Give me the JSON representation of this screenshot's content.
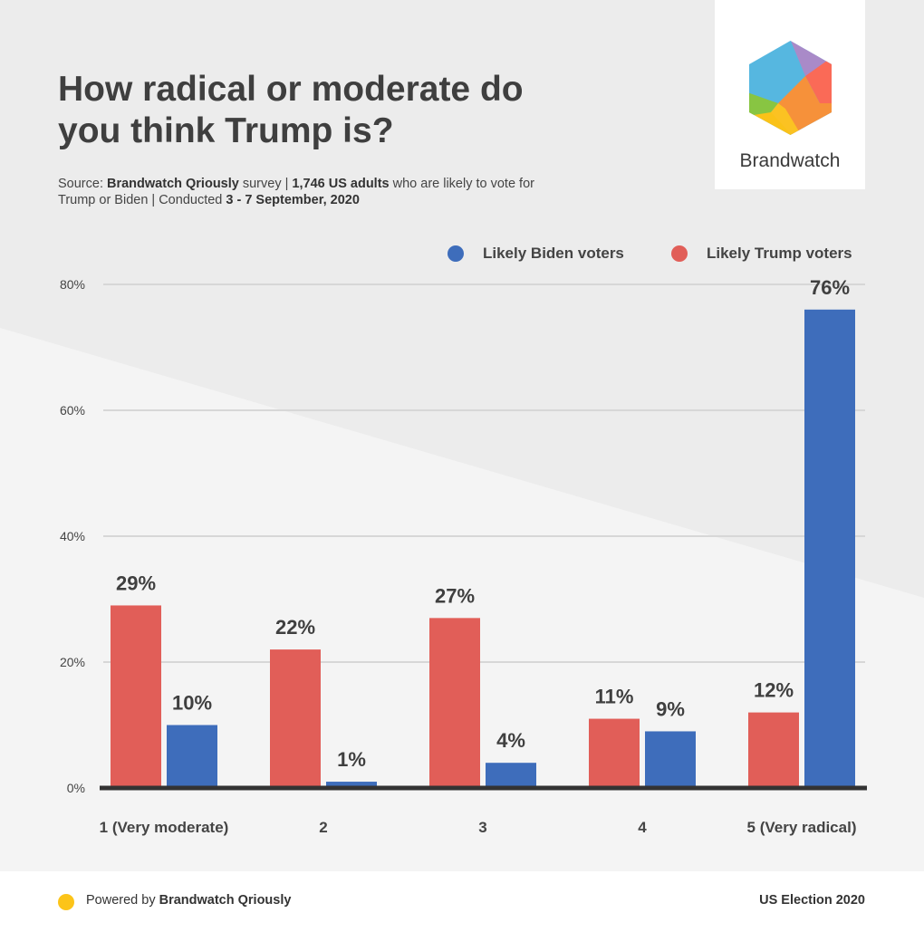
{
  "title": "How radical or moderate do you think Trump is?",
  "source": {
    "p1": "Source: ",
    "p2": "Brandwatch Qriously",
    "p3": " survey | ",
    "p4": "1,746 US adults",
    "p5": " who are likely to vote for Trump or Biden | Conducted ",
    "p6": "3 - 7 September, 2020"
  },
  "brand": {
    "logo_icon": "hexagon-logo-icon",
    "name": "Brandwatch"
  },
  "colors": {
    "biden": "#3e6dbb",
    "trump": "#e15e58",
    "grid": "#d7d7d7",
    "axis": "#333333",
    "footer_dot": "#fcc419"
  },
  "legend": [
    {
      "label": "Likely Biden voters",
      "color": "#3e6dbb"
    },
    {
      "label": "Likely Trump voters",
      "color": "#e15e58"
    }
  ],
  "chart_data": {
    "type": "bar",
    "categories": [
      "1 (Very moderate)",
      "2",
      "3",
      "4",
      "5 (Very radical)"
    ],
    "series": [
      {
        "name": "Likely Trump voters",
        "values": [
          29,
          22,
          27,
          11,
          12
        ],
        "labels": [
          "29%",
          "22%",
          "27%",
          "11%",
          "12%"
        ]
      },
      {
        "name": "Likely Biden voters",
        "values": [
          10,
          1,
          4,
          9,
          76
        ],
        "labels": [
          "10%",
          "1%",
          "4%",
          "9%",
          "76%"
        ]
      }
    ],
    "ylim": [
      0,
      80
    ],
    "yticks": [
      0,
      20,
      40,
      60,
      80
    ],
    "ytick_labels": [
      "0%",
      "20%",
      "40%",
      "60%",
      "80%"
    ],
    "grid": true,
    "legend_position": "top-right"
  },
  "footer": {
    "powered_prefix": "Powered by ",
    "powered_brand": "Brandwatch Qriously",
    "right": "US Election 2020"
  }
}
